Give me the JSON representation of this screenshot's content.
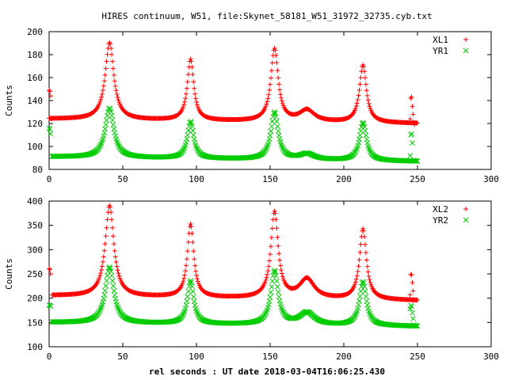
{
  "figure": {
    "title": "HIRES continuum, W51, file:Skynet_58181_W51_31972_32735.cyb.txt",
    "xlabel": "rel seconds : UT date 2018-03-04T16:06:25.430"
  },
  "chart_data": [
    {
      "type": "scatter",
      "xlim": [
        0,
        300
      ],
      "ylim": [
        80,
        200
      ],
      "xticks": [
        0,
        50,
        100,
        150,
        200,
        250,
        300
      ],
      "yticks": [
        80,
        100,
        120,
        140,
        160,
        180,
        200
      ],
      "ylabel": "Counts",
      "legend_position": "top-right",
      "series": [
        {
          "name": "XL1",
          "marker": "plus",
          "color": "#ff0000",
          "base": 124,
          "baseline_end": 120,
          "peaks": [
            [
              41,
              191,
              3.5
            ],
            [
              96,
              177,
              2.6
            ],
            [
              153,
              187,
              3.0
            ],
            [
              175,
              134,
              6.0
            ],
            [
              213,
              174,
              2.8
            ]
          ],
          "scan": [
            0,
            250
          ],
          "outliers": [
            [
              0,
              149
            ],
            [
              0.5,
              148
            ],
            [
              1,
              144
            ],
            [
              1.5,
              124
            ],
            [
              245,
              124
            ],
            [
              245.5,
              142
            ],
            [
              246,
              143
            ],
            [
              246.5,
              135
            ],
            [
              247,
              128
            ],
            [
              247.5,
              121
            ],
            [
              248,
              119
            ]
          ]
        },
        {
          "name": "YR1",
          "marker": "x",
          "color": "#00cc00",
          "base": 91,
          "baseline_end": 87,
          "peaks": [
            [
              41,
              134,
              3.5
            ],
            [
              96,
              123,
              2.6
            ],
            [
              153,
              132,
              3.0
            ],
            [
              175,
              96,
              6.0
            ],
            [
              213,
              124,
              2.8
            ]
          ],
          "scan": [
            2,
            250
          ],
          "outliers": [
            [
              0,
              116
            ],
            [
              0.5,
              115
            ],
            [
              1,
              111
            ],
            [
              245,
              92
            ],
            [
              245.5,
              110
            ],
            [
              246,
              111
            ],
            [
              246.5,
              103
            ],
            [
              247.5,
              88
            ]
          ]
        }
      ]
    },
    {
      "type": "scatter",
      "xlim": [
        0,
        300
      ],
      "ylim": [
        100,
        400
      ],
      "xticks": [
        0,
        50,
        100,
        150,
        200,
        250,
        300
      ],
      "yticks": [
        100,
        150,
        200,
        250,
        300,
        350,
        400
      ],
      "ylabel": "Counts",
      "legend_position": "top-right",
      "series": [
        {
          "name": "XL2",
          "marker": "plus",
          "color": "#ff0000",
          "base": 205,
          "baseline_end": 195,
          "peaks": [
            [
              41,
              392,
              3.5
            ],
            [
              96,
              355,
              2.6
            ],
            [
              153,
              382,
              3.0
            ],
            [
              175,
              245,
              6.0
            ],
            [
              213,
              350,
              2.8
            ]
          ],
          "scan": [
            2,
            250
          ],
          "outliers": [
            [
              0,
              261
            ],
            [
              0.5,
              259
            ],
            [
              1,
              250
            ],
            [
              245,
              207
            ],
            [
              245.5,
              249
            ],
            [
              246,
              248
            ],
            [
              246.5,
              232
            ],
            [
              247,
              215
            ],
            [
              247.5,
              196
            ]
          ]
        },
        {
          "name": "YR2",
          "marker": "x",
          "color": "#00cc00",
          "base": 150,
          "baseline_end": 142,
          "peaks": [
            [
              41,
              265,
              3.5
            ],
            [
              96,
              238,
              2.6
            ],
            [
              153,
              260,
              3.0
            ],
            [
              175,
              175,
              6.0
            ],
            [
              213,
              240,
              2.8
            ]
          ],
          "scan": [
            2,
            250
          ],
          "outliers": [
            [
              0,
              186
            ],
            [
              0.5,
              185
            ],
            [
              1,
              183
            ],
            [
              245,
              178
            ],
            [
              245.5,
              185
            ],
            [
              246,
              183
            ],
            [
              246.5,
              170
            ],
            [
              247,
              158
            ],
            [
              247.5,
              145
            ]
          ]
        }
      ]
    }
  ]
}
